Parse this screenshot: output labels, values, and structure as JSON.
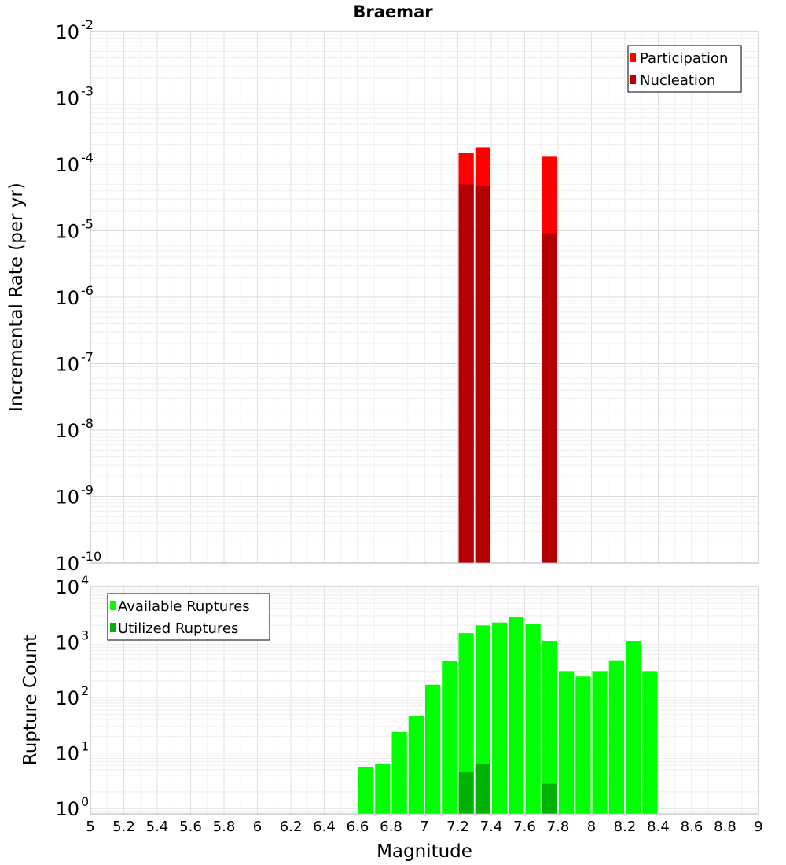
{
  "chart_data": [
    {
      "type": "bar",
      "title": "Braemar",
      "xlabel": "",
      "ylabel": "Incremental Rate (per yr)",
      "yscale": "log",
      "ylim": [
        1e-10,
        0.01
      ],
      "xlim": [
        5,
        9
      ],
      "bar_width": 0.1,
      "grid": true,
      "legend_position": "top-right",
      "y_ticks": [
        {
          "base": "10",
          "exp": "-10"
        },
        {
          "base": "10",
          "exp": "-9"
        },
        {
          "base": "10",
          "exp": "-8"
        },
        {
          "base": "10",
          "exp": "-7"
        },
        {
          "base": "10",
          "exp": "-6"
        },
        {
          "base": "10",
          "exp": "-5"
        },
        {
          "base": "10",
          "exp": "-4"
        },
        {
          "base": "10",
          "exp": "-3"
        },
        {
          "base": "10",
          "exp": "-2"
        }
      ],
      "series": [
        {
          "name": "Participation",
          "color": "#ff0000",
          "x": [
            7.25,
            7.35,
            7.75
          ],
          "values": [
            0.00015,
            0.00018,
            0.00013
          ]
        },
        {
          "name": "Nucleation",
          "color": "#b30000",
          "x": [
            7.25,
            7.35,
            7.75
          ],
          "values": [
            5e-05,
            4.7e-05,
            9.2e-06
          ]
        }
      ]
    },
    {
      "type": "bar",
      "title": "",
      "xlabel": "Magnitude",
      "ylabel": "Rupture Count",
      "yscale": "log",
      "ylim": [
        0.8,
        10000
      ],
      "xlim": [
        5,
        9
      ],
      "bar_width": 0.1,
      "grid": true,
      "legend_position": "top-left",
      "y_ticks": [
        {
          "base": "10",
          "exp": "0"
        },
        {
          "base": "10",
          "exp": "1"
        },
        {
          "base": "10",
          "exp": "2"
        },
        {
          "base": "10",
          "exp": "3"
        },
        {
          "base": "10",
          "exp": "4"
        }
      ],
      "x_ticks": [
        "5",
        "5.2",
        "5.4",
        "5.6",
        "5.8",
        "6",
        "6.2",
        "6.4",
        "6.6",
        "6.8",
        "7",
        "7.2",
        "7.4",
        "7.6",
        "7.8",
        "8",
        "8.2",
        "8.4",
        "8.6",
        "8.8",
        "9"
      ],
      "series": [
        {
          "name": "Available Ruptures",
          "color": "#00ff00",
          "x": [
            6.65,
            6.75,
            6.85,
            6.95,
            7.05,
            7.15,
            7.25,
            7.35,
            7.45,
            7.55,
            7.65,
            7.75,
            7.85,
            7.95,
            8.05,
            8.15,
            8.25,
            8.35
          ],
          "values": [
            5.5,
            6.5,
            24,
            47,
            170,
            460,
            1450,
            2000,
            2250,
            2850,
            2100,
            1050,
            300,
            240,
            300,
            470,
            1050,
            300
          ]
        },
        {
          "name": "Utilized Ruptures",
          "color": "#00b300",
          "x": [
            7.25,
            7.35,
            7.75
          ],
          "values": [
            4.5,
            6.3,
            2.8
          ]
        }
      ]
    }
  ]
}
